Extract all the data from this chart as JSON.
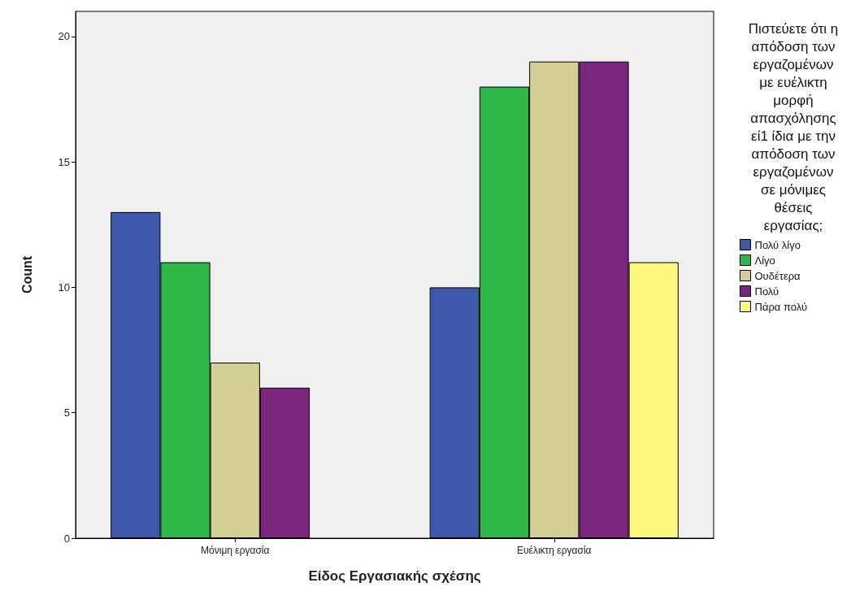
{
  "chart_data": {
    "type": "bar",
    "xlabel": "Είδος Εργασιακής σχέσης",
    "ylabel": "Count",
    "legend_title": "Πιστεύετε ότι η απόδοση των εργαζομένων με ευέλικτη μορφή απασχόλησης εί1 ίδια με την απόδοση των εργαζομένων σε μόνιμες θέσεις εργασίας;",
    "categories": [
      "Μόνιμη εργασία",
      "Ευέλικτη εργασία"
    ],
    "series": [
      {
        "name": "Πολύ λίγο",
        "color": "#3e58ac",
        "values": [
          13,
          10
        ]
      },
      {
        "name": "Λίγο",
        "color": "#2eb848",
        "values": [
          11,
          18
        ]
      },
      {
        "name": "Ουδέτερα",
        "color": "#d4cf95",
        "values": [
          7,
          19
        ]
      },
      {
        "name": "Πολύ",
        "color": "#7b267e",
        "values": [
          6,
          19
        ]
      },
      {
        "name": "Πάρα πολύ",
        "color": "#fbf87e",
        "values": [
          null,
          11
        ]
      }
    ],
    "ylim": [
      0,
      21
    ],
    "yticks": [
      0,
      5,
      10,
      15,
      20
    ],
    "grid": false,
    "legend": "right"
  }
}
